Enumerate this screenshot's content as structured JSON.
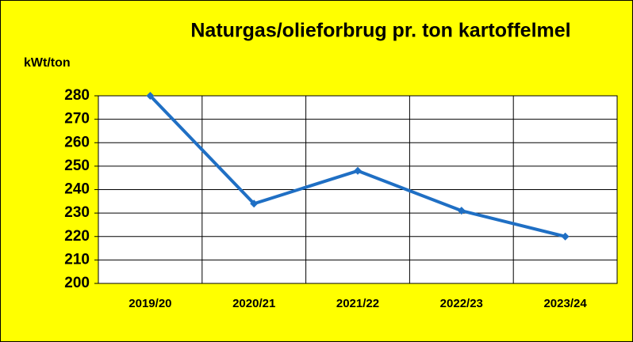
{
  "chart_data": {
    "type": "line",
    "title": "Naturgas/olieforbrug pr. ton kartoffelmel",
    "ylabel": "kWt/ton",
    "categories": [
      "2019/20",
      "2020/21",
      "2021/22",
      "2022/23",
      "2023/24"
    ],
    "series": [
      {
        "name": "Naturgas/olieforbrug",
        "color": "#1f6fc4",
        "values": [
          280,
          234,
          248,
          231,
          220
        ]
      }
    ],
    "ylim": [
      200,
      280
    ],
    "yticks": [
      200,
      210,
      220,
      230,
      240,
      250,
      260,
      270,
      280
    ],
    "grid": true,
    "background": "#ffff00"
  }
}
